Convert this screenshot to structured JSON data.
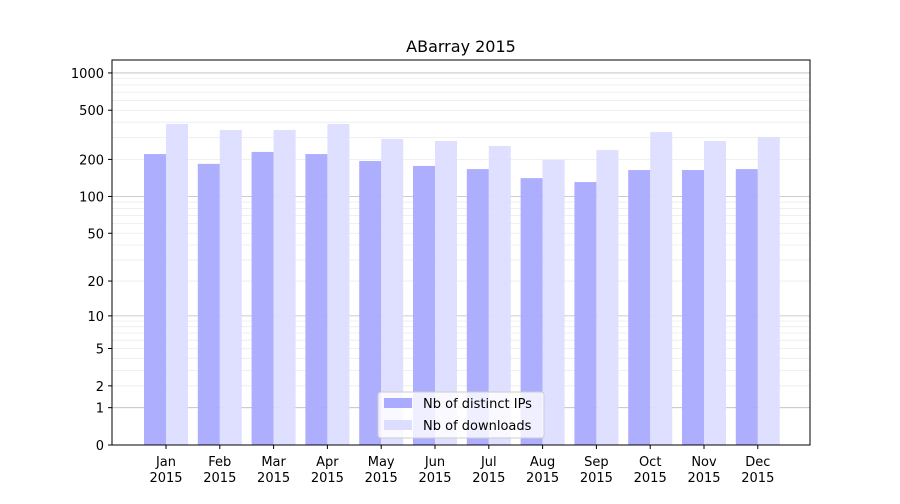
{
  "chart_data": {
    "type": "bar",
    "title": "ABarray 2015",
    "xlabel": "",
    "ylabel": "",
    "yscale": "log10(1+y)",
    "ylim": [
      0,
      1300
    ],
    "yticks": [
      0,
      1,
      2,
      5,
      10,
      20,
      50,
      100,
      200,
      500,
      1000
    ],
    "grid": true,
    "legend_position": "bottom-center",
    "categories": [
      "Jan\n2015",
      "Feb\n2015",
      "Mar\n2015",
      "Apr\n2015",
      "May\n2015",
      "Jun\n2015",
      "Jul\n2015",
      "Aug\n2015",
      "Sep\n2015",
      "Oct\n2015",
      "Nov\n2015",
      "Dec\n2015"
    ],
    "series": [
      {
        "name": "Nb of distinct IPs",
        "color": "#aaaaff",
        "values": [
          221,
          184,
          230,
          221,
          194,
          177,
          167,
          141,
          131,
          164,
          164,
          167
        ]
      },
      {
        "name": "Nb of downloads",
        "color": "#ddddff",
        "values": [
          387,
          346,
          346,
          387,
          293,
          282,
          257,
          198,
          238,
          333,
          282,
          304
        ]
      }
    ]
  }
}
